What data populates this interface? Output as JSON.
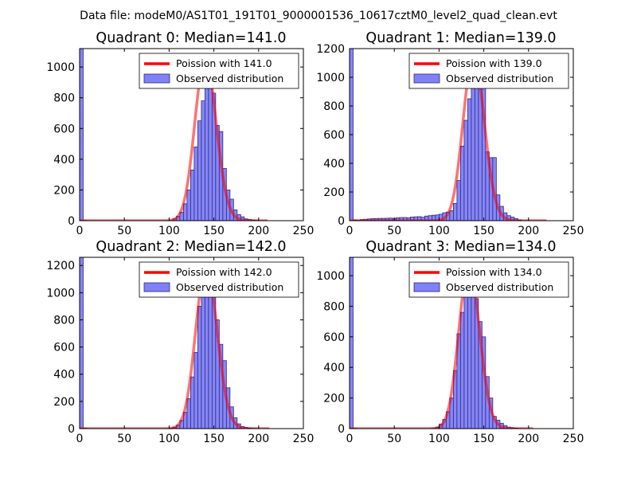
{
  "figure": {
    "suptitle": "Data file: modeM0/AS1T01_191T01_9000001536_10617cztM0_level2_quad_clean.evt"
  },
  "colors": {
    "bar_fill": "#8080f8",
    "bar_edge": "#2a2a80",
    "poisson_line": "#ff0000",
    "axes": "#000000"
  },
  "chart_data": [
    {
      "type": "bar",
      "title": "Quadrant 0: Median=141.0",
      "xlim": [
        0,
        250
      ],
      "ylim": [
        0,
        1120
      ],
      "xticks": [
        0,
        50,
        100,
        150,
        200,
        250
      ],
      "yticks": [
        0,
        200,
        400,
        600,
        800,
        1000
      ],
      "legend_position": "top-right",
      "poisson_label": "Poission with 141.0",
      "observed_label": "Observed distribution",
      "poisson_mean": 141.0,
      "poisson_peak": 1060,
      "poisson_xrange": [
        0,
        210
      ],
      "bin_width": 4,
      "bins": [
        0,
        4,
        100,
        104,
        108,
        112,
        116,
        120,
        124,
        128,
        132,
        136,
        140,
        144,
        148,
        152,
        156,
        160,
        164,
        168,
        172,
        176,
        180,
        184,
        188,
        192,
        196
      ],
      "counts": [
        1120,
        2,
        2,
        12,
        28,
        55,
        110,
        200,
        330,
        480,
        650,
        780,
        960,
        900,
        830,
        620,
        580,
        340,
        200,
        140,
        70,
        40,
        25,
        12,
        8,
        4,
        2
      ]
    },
    {
      "type": "bar",
      "title": "Quadrant 1: Median=139.0",
      "xlim": [
        0,
        250
      ],
      "ylim": [
        0,
        1200
      ],
      "xticks": [
        0,
        50,
        100,
        150,
        200,
        250
      ],
      "yticks": [
        0,
        200,
        400,
        600,
        800,
        1000,
        1200
      ],
      "legend_position": "top-right",
      "poisson_label": "Poission with 139.0",
      "observed_label": "Observed distribution",
      "poisson_mean": 139.0,
      "poisson_peak": 1150,
      "poisson_xrange": [
        0,
        220
      ],
      "bin_width": 4,
      "bins": [
        0,
        4,
        8,
        12,
        16,
        20,
        24,
        28,
        32,
        36,
        40,
        44,
        48,
        52,
        56,
        60,
        64,
        68,
        72,
        76,
        80,
        84,
        88,
        92,
        96,
        100,
        104,
        108,
        112,
        116,
        120,
        124,
        128,
        132,
        136,
        140,
        144,
        148,
        152,
        156,
        160,
        164,
        168,
        172,
        176,
        180,
        184,
        188
      ],
      "counts": [
        1200,
        5,
        3,
        8,
        10,
        12,
        14,
        15,
        16,
        16,
        17,
        18,
        16,
        20,
        22,
        22,
        20,
        25,
        27,
        28,
        24,
        32,
        35,
        38,
        40,
        45,
        55,
        60,
        70,
        120,
        280,
        520,
        700,
        850,
        1020,
        1040,
        960,
        930,
        480,
        440,
        440,
        180,
        100,
        55,
        35,
        25,
        15,
        5
      ]
    },
    {
      "type": "bar",
      "title": "Quadrant 2: Median=142.0",
      "xlim": [
        0,
        250
      ],
      "ylim": [
        0,
        1260
      ],
      "xticks": [
        0,
        50,
        100,
        150,
        200,
        250
      ],
      "yticks": [
        0,
        200,
        400,
        600,
        800,
        1000,
        1200
      ],
      "legend_position": "top-right",
      "poisson_label": "Poission with 142.0",
      "observed_label": "Observed distribution",
      "poisson_mean": 142.0,
      "poisson_peak": 1200,
      "poisson_xrange": [
        0,
        212
      ],
      "bin_width": 4,
      "bins": [
        0,
        4,
        100,
        104,
        108,
        112,
        116,
        120,
        124,
        128,
        132,
        136,
        140,
        144,
        148,
        152,
        156,
        160,
        164,
        168,
        172,
        176,
        180,
        184,
        188,
        192,
        196
      ],
      "counts": [
        1260,
        3,
        3,
        10,
        25,
        60,
        120,
        220,
        380,
        560,
        900,
        1000,
        1100,
        1150,
        1060,
        800,
        620,
        500,
        300,
        160,
        80,
        35,
        15,
        8,
        4,
        2,
        1
      ]
    },
    {
      "type": "bar",
      "title": "Quadrant 3: Median=134.0",
      "xlim": [
        0,
        250
      ],
      "ylim": [
        0,
        1120
      ],
      "xticks": [
        0,
        50,
        100,
        150,
        200,
        250
      ],
      "yticks": [
        0,
        200,
        400,
        600,
        800,
        1000
      ],
      "legend_position": "top-right",
      "poisson_label": "Poission with 134.0",
      "observed_label": "Observed distribution",
      "poisson_mean": 134.0,
      "poisson_peak": 1060,
      "poisson_xrange": [
        0,
        205
      ],
      "bin_width": 4,
      "bins": [
        0,
        4,
        92,
        96,
        100,
        104,
        108,
        112,
        116,
        120,
        124,
        128,
        132,
        136,
        140,
        144,
        148,
        152,
        156,
        160,
        164,
        168,
        172,
        176,
        180,
        184,
        188
      ],
      "counts": [
        1120,
        2,
        2,
        8,
        30,
        60,
        110,
        200,
        380,
        620,
        760,
        900,
        1080,
        1000,
        850,
        700,
        600,
        340,
        200,
        80,
        55,
        35,
        20,
        10,
        6,
        3,
        1
      ]
    }
  ]
}
